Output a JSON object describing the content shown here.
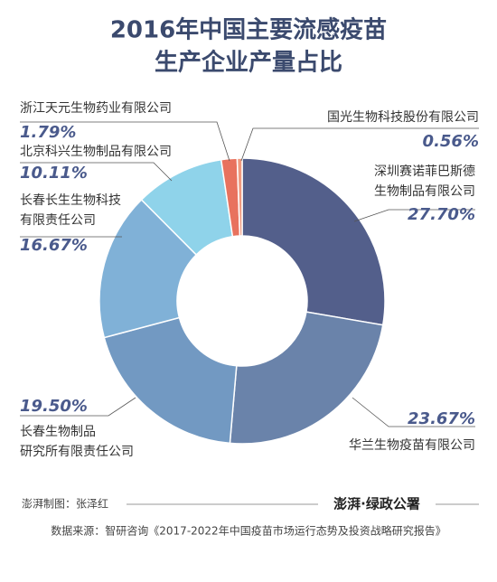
{
  "chart_data": {
    "type": "pie",
    "title": [
      "2016年中国主要流感疫苗",
      "生产企业产量占比"
    ],
    "categories": [
      [
        "深圳赛诺菲巴斯德",
        "生物制品有限公司"
      ],
      [
        "华兰生物疫苗有限公司"
      ],
      [
        "长春生物制品",
        "研究所有限责任公司"
      ],
      [
        "长春长生生物科技",
        "有限责任公司"
      ],
      [
        "北京科兴生物制品有限公司"
      ],
      [
        "浙江天元生物药业有限公司"
      ],
      [
        "国光生物科技股份有限公司"
      ]
    ],
    "values": [
      27.7,
      23.67,
      19.5,
      16.67,
      10.11,
      1.79,
      0.56
    ],
    "value_labels": [
      "27.70%",
      "23.67%",
      "19.50%",
      "16.67%",
      "10.11%",
      "1.79%",
      "0.56%"
    ],
    "colors": [
      "#535f8b",
      "#6a83aa",
      "#7299c2",
      "#80b1d7",
      "#8fd3ea",
      "#e8725e",
      "#f09a7e"
    ],
    "donut": true
  },
  "credit": "澎湃制图：张泽红",
  "logo": "澎湃·绿政公署",
  "source": "数据来源：智研咨询《2017-2022年中国疫苗市场运行态势及投资战略研究报告》"
}
